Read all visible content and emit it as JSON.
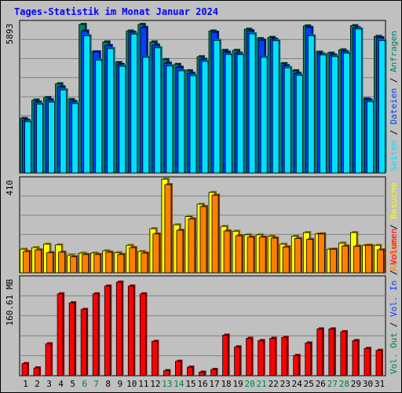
{
  "title": "Tages-Statistik im Monat Januar 2024",
  "colors": {
    "background": "#c0c0c0",
    "title": "#0000ff",
    "weekend_label": "#008040",
    "weekday_label": "#000000",
    "hits": "#00805c",
    "files": "#0040ff",
    "pages": "#00e0ff",
    "visits": "#ffff00",
    "sites": "#ff8000",
    "kbytes": "#ff0000"
  },
  "chart_data": [
    {
      "type": "bar",
      "panel": "top",
      "scale_max_label": "5893",
      "ylim": [
        0,
        5893
      ],
      "categories": [
        "1",
        "2",
        "3",
        "4",
        "5",
        "6",
        "7",
        "8",
        "9",
        "10",
        "11",
        "12",
        "13",
        "14",
        "15",
        "16",
        "17",
        "18",
        "19",
        "20",
        "21",
        "22",
        "23",
        "24",
        "25",
        "26",
        "27",
        "28",
        "29",
        "30",
        "31"
      ],
      "weekend_days": [
        "6",
        "7",
        "13",
        "14",
        "20",
        "21",
        "27",
        "28"
      ],
      "right_labels": [
        "Anfragen",
        "/",
        "Dateien",
        "/",
        "Seiten"
      ],
      "series": [
        {
          "name": "Anfragen",
          "color": "#00805c",
          "values": [
            2140,
            2860,
            2960,
            3500,
            2880,
            5830,
            4750,
            5140,
            4330,
            5570,
            5830,
            5140,
            4450,
            4260,
            4010,
            4560,
            5570,
            4810,
            4810,
            5640,
            5270,
            5320,
            4290,
            4010,
            5770,
            4740,
            4700,
            4830,
            5780,
            2910,
            5360
          ]
        },
        {
          "name": "Dateien",
          "color": "#0040ff",
          "values": [
            2070,
            2780,
            2870,
            3380,
            2800,
            5570,
            4750,
            5000,
            4260,
            5520,
            5710,
            5020,
            4310,
            4150,
            3910,
            4460,
            5520,
            4740,
            4700,
            5580,
            5210,
            5250,
            4210,
            3910,
            5710,
            4670,
            4630,
            4760,
            5700,
            2870,
            5310
          ]
        },
        {
          "name": "Seiten",
          "color": "#00e0ff",
          "values": [
            2010,
            2700,
            2780,
            3260,
            2720,
            5380,
            4430,
            4880,
            4190,
            5450,
            4540,
            4910,
            4200,
            4010,
            3820,
            4380,
            5200,
            4650,
            4640,
            5460,
            4540,
            5190,
            4130,
            3830,
            5380,
            4630,
            4570,
            4700,
            5650,
            2800,
            5200
          ]
        }
      ]
    },
    {
      "type": "bar",
      "panel": "middle",
      "scale_max_label": "410",
      "ylim": [
        0,
        410
      ],
      "categories": [
        "1",
        "2",
        "3",
        "4",
        "5",
        "6",
        "7",
        "8",
        "9",
        "10",
        "11",
        "12",
        "13",
        "14",
        "15",
        "16",
        "17",
        "18",
        "19",
        "20",
        "21",
        "22",
        "23",
        "24",
        "25",
        "26",
        "27",
        "28",
        "29",
        "30",
        "31"
      ],
      "right_labels": [
        "Besuche",
        "/",
        "Rechner"
      ],
      "series": [
        {
          "name": "Besuche",
          "color": "#ffff00",
          "values": [
            103,
            110,
            125,
            122,
            76,
            86,
            86,
            96,
            88,
            120,
            93,
            193,
            410,
            210,
            246,
            300,
            352,
            203,
            182,
            166,
            166,
            160,
            125,
            160,
            176,
            170,
            103,
            130,
            176,
            120,
            120
          ]
        },
        {
          "name": "Rechner",
          "color": "#ff8000",
          "values": [
            93,
            100,
            88,
            90,
            70,
            80,
            80,
            90,
            80,
            110,
            86,
            170,
            386,
            186,
            236,
            290,
            340,
            183,
            162,
            156,
            156,
            152,
            113,
            150,
            146,
            170,
            103,
            117,
            116,
            120,
            100
          ]
        }
      ]
    },
    {
      "type": "bar",
      "panel": "bottom",
      "scale_max_label": "160.61 MB",
      "ylim": [
        0,
        250
      ],
      "categories": [
        "1",
        "2",
        "3",
        "4",
        "5",
        "6",
        "7",
        "8",
        "9",
        "10",
        "11",
        "12",
        "13",
        "14",
        "15",
        "16",
        "17",
        "18",
        "19",
        "20",
        "21",
        "22",
        "23",
        "24",
        "25",
        "26",
        "27",
        "28",
        "29",
        "30",
        "31"
      ],
      "right_labels": [
        "Volumen",
        "/",
        "Vol. In",
        "/",
        "Vol. Out"
      ],
      "series": [
        {
          "name": "Volumen",
          "color": "#ff0000",
          "values": [
            31,
            20,
            82,
            210,
            187,
            170,
            210,
            230,
            240,
            230,
            210,
            88,
            13,
            37,
            22,
            9,
            16,
            104,
            74,
            96,
            90,
            96,
            98,
            52,
            84,
            120,
            120,
            113,
            90,
            70,
            65
          ]
        }
      ]
    }
  ]
}
